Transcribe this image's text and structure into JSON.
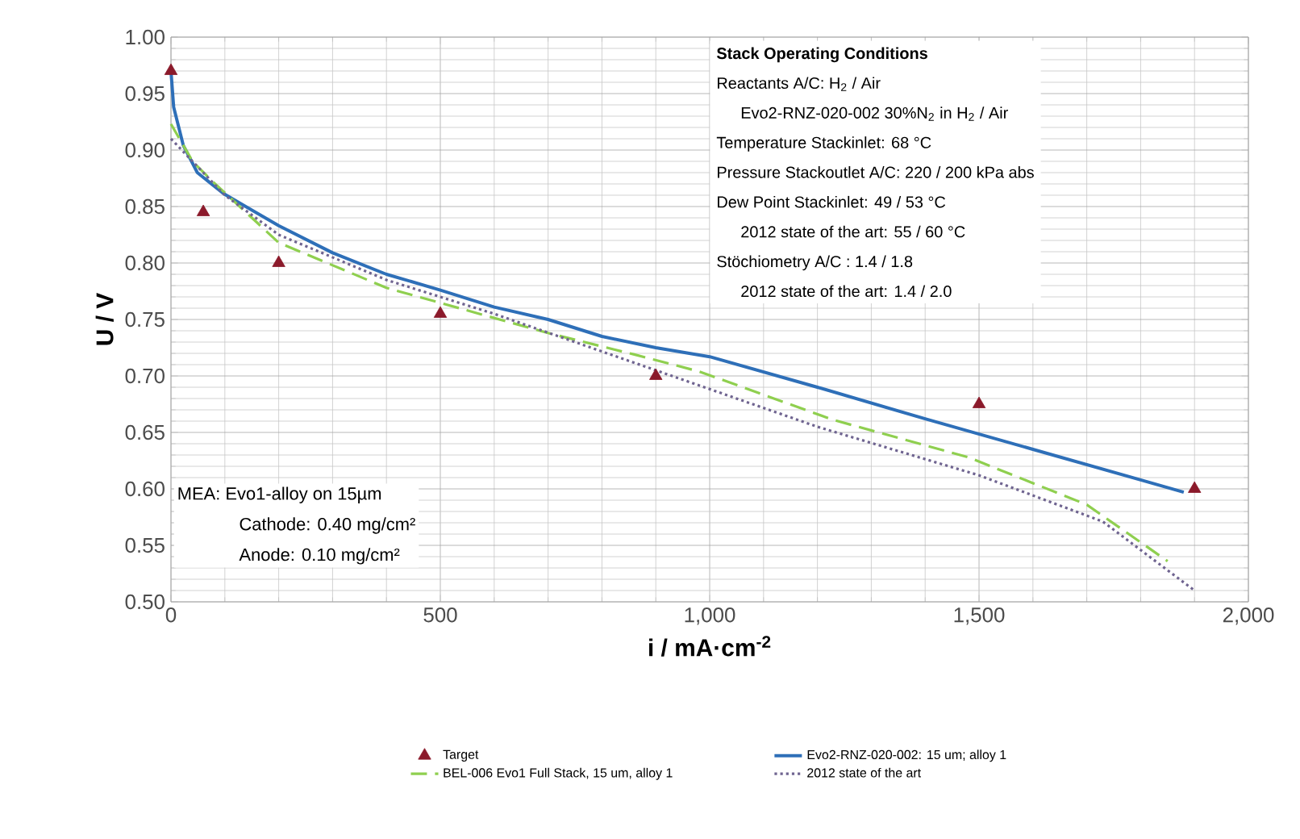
{
  "chart_data": {
    "type": "line",
    "xlabel": "i / mA·cm$^{-2}$",
    "ylabel": "U / V",
    "xlim": [
      0,
      2000
    ],
    "ylim": [
      0.5,
      1.0
    ],
    "xticks": [
      0,
      500,
      {
        "value": 1000,
        "label": "1,000"
      },
      {
        "value": 1500,
        "label": "1,500"
      },
      {
        "value": 2000,
        "label": "2,000"
      }
    ],
    "yticks": [
      {
        "value": 0.5,
        "label": "0.50"
      },
      0.55,
      {
        "value": 0.6,
        "label": "0.60"
      },
      0.65,
      {
        "value": 0.7,
        "label": "0.70"
      },
      0.75,
      {
        "value": 0.8,
        "label": "0.80"
      },
      0.85,
      {
        "value": 0.9,
        "label": "0.90"
      },
      0.95,
      {
        "value": 1.0,
        "label": "1.00"
      }
    ],
    "grid": true,
    "legend": "bottom",
    "series": [
      {
        "name": "Target",
        "type": "scatter",
        "marker": "triangle",
        "color": "#8b1a2b",
        "x": [
          0,
          60,
          200,
          500,
          900,
          1500,
          1900
        ],
        "values": [
          0.97,
          0.845,
          0.8,
          0.755,
          0.7,
          0.675,
          0.6
        ]
      },
      {
        "name": "Evo2-RNZ-020-002: 15 um; alloy 1",
        "line_style": "solid",
        "color": "#2e6fb8",
        "x": [
          0,
          5,
          23,
          49,
          99,
          200,
          300,
          400,
          500,
          600,
          700,
          800,
          900,
          1000,
          1200,
          1400,
          1600,
          1800,
          1880
        ],
        "values": [
          0.97,
          0.938,
          0.904,
          0.88,
          0.861,
          0.833,
          0.809,
          0.79,
          0.776,
          0.761,
          0.75,
          0.735,
          0.725,
          0.717,
          0.69,
          0.662,
          0.635,
          0.608,
          0.597
        ]
      },
      {
        "name": "BEL-006 Evo1 Full Stack, 15 um, alloy 1",
        "line_style": "dashed",
        "color": "#8fcf4f",
        "x": [
          0,
          40,
          80,
          200,
          400,
          700,
          860,
          980,
          1230,
          1480,
          1700,
          1850
        ],
        "values": [
          0.923,
          0.89,
          0.871,
          0.818,
          0.778,
          0.738,
          0.719,
          0.704,
          0.661,
          0.628,
          0.586,
          0.536
        ]
      },
      {
        "name": "2012 state of the art",
        "line_style": "dotted",
        "color": "#6f6490",
        "x": [
          0,
          100,
          200,
          400,
          600,
          900,
          1200,
          1500,
          1730,
          1900
        ],
        "values": [
          0.91,
          0.86,
          0.825,
          0.785,
          0.755,
          0.705,
          0.655,
          0.612,
          0.571,
          0.51
        ]
      }
    ],
    "annotations": [
      "**Stack Operating Conditions**",
      "Reactants A/C: H$_{2}$ / Air",
      "Evo2-RNZ-020-002 30%N$_{2}$ in H$_{2}$ / Air",
      "Temperature Stackinlet: 68 °C",
      "Pressure Stackoutlet A/C: 220 / 200 kPa abs",
      "Dew Point Stackinlet: 49 / 53 °C",
      "2012 state of the art: 55 / 60 °C",
      "Stöchiometry A/C : 1.4 / 1.8",
      "2012 state of the art: 1.4 / 2.0",
      "MEA: Evo1-alloy on 15µm",
      "Cathode: 0.40 mg/cm²",
      "Anode: 0.10 mg/cm²"
    ]
  }
}
